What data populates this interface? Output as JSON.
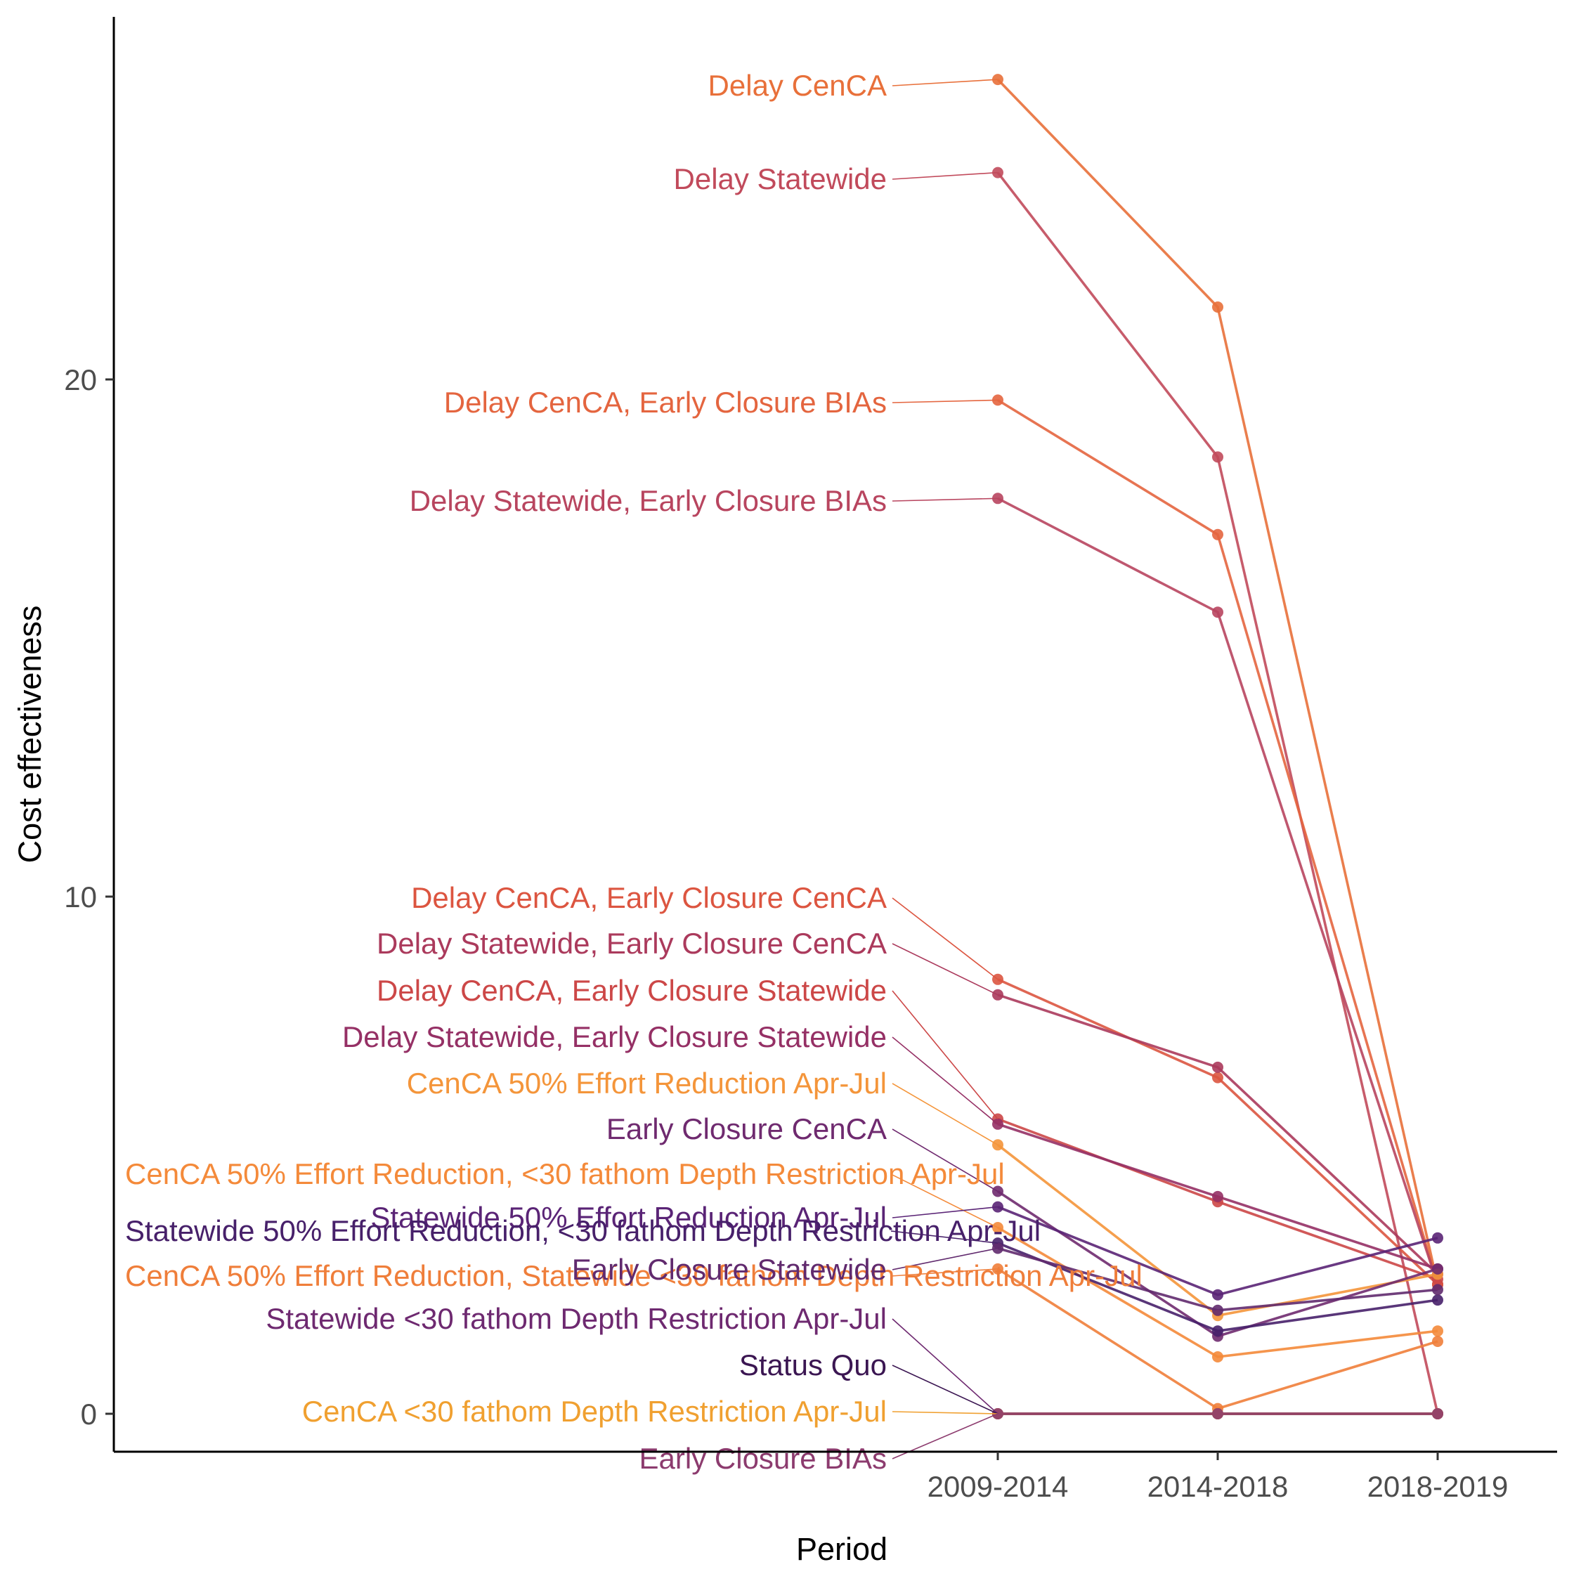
{
  "chart_data": {
    "type": "line",
    "title": "",
    "xlabel": "Period",
    "ylabel": "Cost effectiveness",
    "categories": [
      "2009-2014",
      "2014-2018",
      "2018-2019"
    ],
    "y_ticks": [
      0,
      10,
      20
    ],
    "ylim": [
      -0.7,
      26.6
    ],
    "grid": false,
    "legend": "none (direct labels at left)",
    "series": [
      {
        "name": "Delay CenCA",
        "color": "#e8703a",
        "values": [
          25.8,
          21.4,
          2.5
        ]
      },
      {
        "name": "Delay Statewide",
        "color": "#c14a5b",
        "values": [
          24.0,
          18.5,
          0.0
        ]
      },
      {
        "name": "Delay CenCA, Early Closure BIAs",
        "color": "#e4653f",
        "values": [
          19.6,
          17.0,
          2.5
        ]
      },
      {
        "name": "Delay Statewide, Early Closure BIAs",
        "color": "#b8455f",
        "values": [
          17.7,
          15.5,
          2.5
        ]
      },
      {
        "name": "Delay CenCA, Early Closure CenCA",
        "color": "#dc5540",
        "values": [
          8.4,
          6.5,
          2.5
        ]
      },
      {
        "name": "Delay Statewide, Early Closure CenCA",
        "color": "#ab3a5c",
        "values": [
          8.1,
          6.7,
          2.7
        ]
      },
      {
        "name": "Delay CenCA, Early Closure Statewide",
        "color": "#cc4747",
        "values": [
          5.7,
          4.1,
          2.6
        ]
      },
      {
        "name": "Delay Statewide, Early Closure Statewide",
        "color": "#953065",
        "values": [
          5.6,
          4.2,
          2.8
        ]
      },
      {
        "name": "CenCA 50% Effort Reduction Apr-Jul",
        "color": "#f4953a",
        "values": [
          5.2,
          1.9,
          2.7
        ]
      },
      {
        "name": "Early Closure CenCA",
        "color": "#6f2a6f",
        "values": [
          4.3,
          1.5,
          2.8
        ]
      },
      {
        "name": "CenCA 50% Effort Reduction, <30 fathom Depth Restriction Apr-Jul",
        "color": "#f48a3a",
        "values": [
          3.6,
          1.1,
          1.6
        ]
      },
      {
        "name": "Statewide 50% Effort Reduction Apr-Jul",
        "color": "#5a2476",
        "values": [
          4.0,
          2.3,
          3.4
        ]
      },
      {
        "name": "Statewide 50% Effort Reduction, <30 fathom Depth Restriction Apr-Jul",
        "color": "#47206a",
        "values": [
          3.3,
          1.6,
          2.2
        ]
      },
      {
        "name": "CenCA 50% Effort Reduction, Statewide <30 fathom Depth Restriction Apr-Jul",
        "color": "#ef7e3a",
        "values": [
          2.8,
          0.1,
          1.4
        ]
      },
      {
        "name": "Early Closure Statewide",
        "color": "#612a6e",
        "values": [
          3.2,
          2.0,
          2.4
        ]
      },
      {
        "name": "Statewide <30 fathom Depth Restriction Apr-Jul",
        "color": "#6e2970",
        "values": [
          0.0,
          0.0,
          0.0
        ]
      },
      {
        "name": "Status Quo",
        "color": "#3b1652",
        "values": [
          0.0,
          0.0,
          0.0
        ]
      },
      {
        "name": "CenCA <30 fathom Depth Restriction Apr-Jul",
        "color": "#f0a030",
        "values": [
          0.0,
          0.0,
          0.0
        ]
      },
      {
        "name": "Early Closure BIAs",
        "color": "#8c3b6e",
        "values": [
          0.0,
          0.0,
          0.0
        ]
      }
    ]
  }
}
